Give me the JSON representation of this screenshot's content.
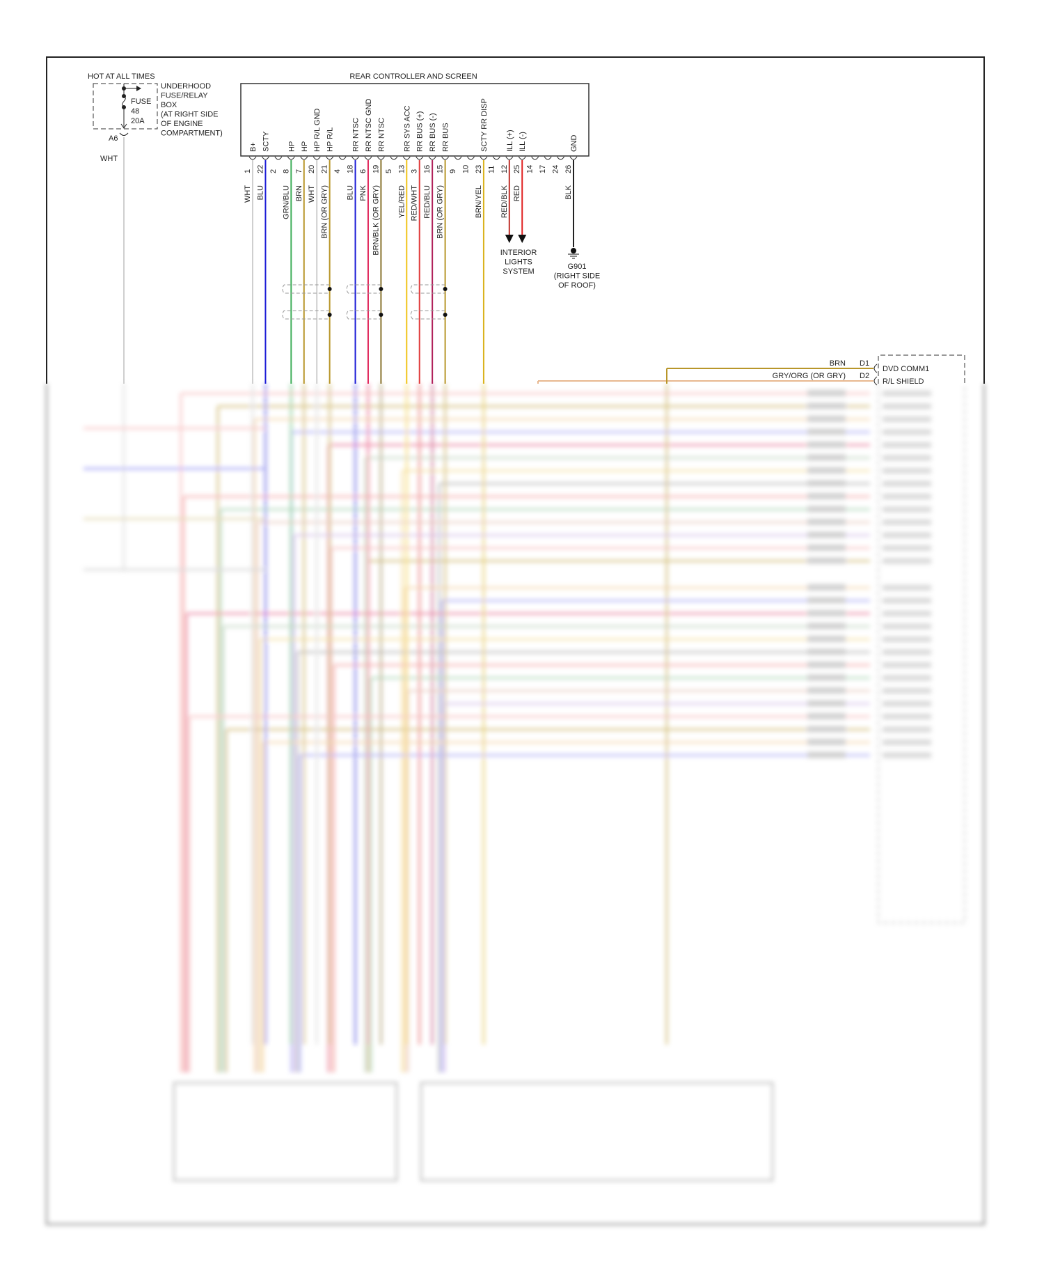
{
  "power_source": {
    "heading": "HOT AT ALL TIMES",
    "fuse_label": "FUSE",
    "fuse_number": "48",
    "fuse_rating": "20A",
    "box_lines": [
      "UNDERHOOD",
      "FUSE/RELAY",
      "BOX",
      "(AT RIGHT SIDE",
      "OF ENGINE",
      "COMPARTMENT)"
    ],
    "connector_pin": "A6",
    "wire_color": "WHT"
  },
  "rear_controller": {
    "title": "REAR CONTROLLER AND SCREEN",
    "pins": [
      {
        "pin": "1",
        "function": "B+",
        "wire": "WHT",
        "color": "#cfcfcf"
      },
      {
        "pin": "22",
        "function": "SCTY",
        "wire": "BLU",
        "color": "#1c1cd6"
      },
      {
        "pin": "2",
        "function": "",
        "wire": "",
        "color": ""
      },
      {
        "pin": "8",
        "function": "HP",
        "wire": "GRN/BLU",
        "color": "#3fae5a"
      },
      {
        "pin": "7",
        "function": "HP",
        "wire": "BRN",
        "color": "#b8962a"
      },
      {
        "pin": "20",
        "function": "HP R/L GND",
        "wire": "WHT",
        "color": "#cfcfcf"
      },
      {
        "pin": "21",
        "function": "HP R/L",
        "wire": "BRN (OR GRY)",
        "color": "#b8962a"
      },
      {
        "pin": "4",
        "function": "",
        "wire": "",
        "color": ""
      },
      {
        "pin": "18",
        "function": "RR NTSC",
        "wire": "BLU",
        "color": "#1c1cd6"
      },
      {
        "pin": "6",
        "function": "RR NTSC GND",
        "wire": "PNK",
        "color": "#e0245a"
      },
      {
        "pin": "19",
        "function": "RR NTSC",
        "wire": "BRN/BLK (OR GRY)",
        "color": "#8a7430"
      },
      {
        "pin": "5",
        "function": "",
        "wire": "",
        "color": ""
      },
      {
        "pin": "13",
        "function": "RR SYS ACC",
        "wire": "YEL/RED",
        "color": "#f0c419"
      },
      {
        "pin": "3",
        "function": "RR BUS (+)",
        "wire": "RED/WHT",
        "color": "#e03a3a"
      },
      {
        "pin": "16",
        "function": "RR BUS (-)",
        "wire": "RED/BLU",
        "color": "#b0205a"
      },
      {
        "pin": "15",
        "function": "RR BUS",
        "wire": "BRN (OR GRY)",
        "color": "#b8962a"
      },
      {
        "pin": "9",
        "function": "",
        "wire": "",
        "color": ""
      },
      {
        "pin": "10",
        "function": "",
        "wire": "",
        "color": ""
      },
      {
        "pin": "23",
        "function": "SCTY RR DISP",
        "wire": "BRN/YEL",
        "color": "#d9b21c"
      },
      {
        "pin": "11",
        "function": "",
        "wire": "",
        "color": ""
      },
      {
        "pin": "12",
        "function": "ILL (+)",
        "wire": "RED/BLK",
        "color": "#c0302a"
      },
      {
        "pin": "25",
        "function": "ILL (-)",
        "wire": "RED",
        "color": "#e02020"
      },
      {
        "pin": "14",
        "function": "",
        "wire": "",
        "color": ""
      },
      {
        "pin": "17",
        "function": "",
        "wire": "",
        "color": ""
      },
      {
        "pin": "24",
        "function": "",
        "wire": "",
        "color": ""
      },
      {
        "pin": "26",
        "function": "GND",
        "wire": "BLK",
        "color": "#222222"
      }
    ]
  },
  "interior_lights": {
    "lines": [
      "INTERIOR",
      "LIGHTS",
      "SYSTEM"
    ]
  },
  "ground": {
    "lines": [
      "G901",
      "(RIGHT SIDE",
      "OF ROOF)"
    ]
  },
  "dvd_connector": {
    "pins": [
      {
        "pin": "D1",
        "wire": "BRN",
        "function": "DVD COMM1",
        "color": "#b8962a"
      },
      {
        "pin": "D2",
        "wire": "GRY/ORG (OR GRY)",
        "function": "R/L SHIELD",
        "color": "#e8b890"
      }
    ]
  }
}
